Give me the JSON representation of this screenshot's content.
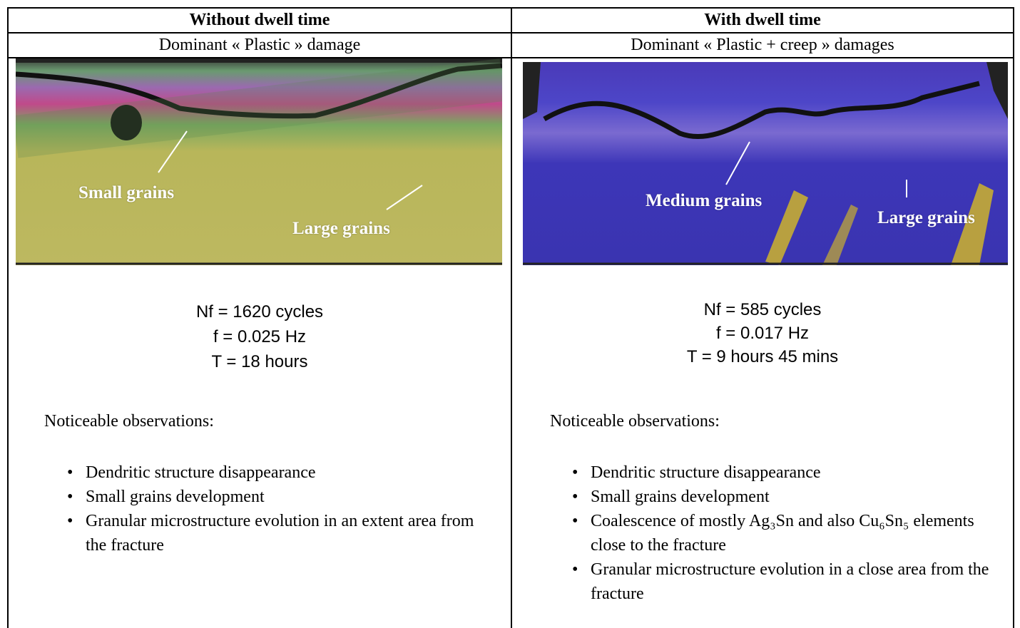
{
  "table": {
    "header": [
      "Without dwell time",
      "With dwell time"
    ],
    "subheader": [
      "Dominant « Plastic » damage",
      "Dominant « Plastic + creep » damages"
    ],
    "columns": [
      {
        "image_labels": [
          "Small grains",
          "Large grains"
        ],
        "parameters": [
          "Nf = 1620 cycles",
          "f = 0.025 Hz",
          "T = 18 hours"
        ],
        "observations_title": "Noticeable observations:",
        "observations": [
          "Dendritic structure disappearance",
          "Small grains development",
          "Granular microstructure evolution in an extent area from the fracture"
        ]
      },
      {
        "image_labels": [
          "Medium grains",
          "Large grains"
        ],
        "parameters": [
          "Nf = 585 cycles",
          "f = 0.017 Hz",
          "T = 9 hours 45 mins"
        ],
        "observations_title": "Noticeable observations:",
        "observations": [
          "Dendritic structure disappearance",
          "Small grains development",
          "Coalescence of mostly Ag₃Sn and also Cu₆Sn₅ elements close to the fracture",
          "Granular microstructure evolution in a close area from the fracture"
        ]
      }
    ]
  }
}
